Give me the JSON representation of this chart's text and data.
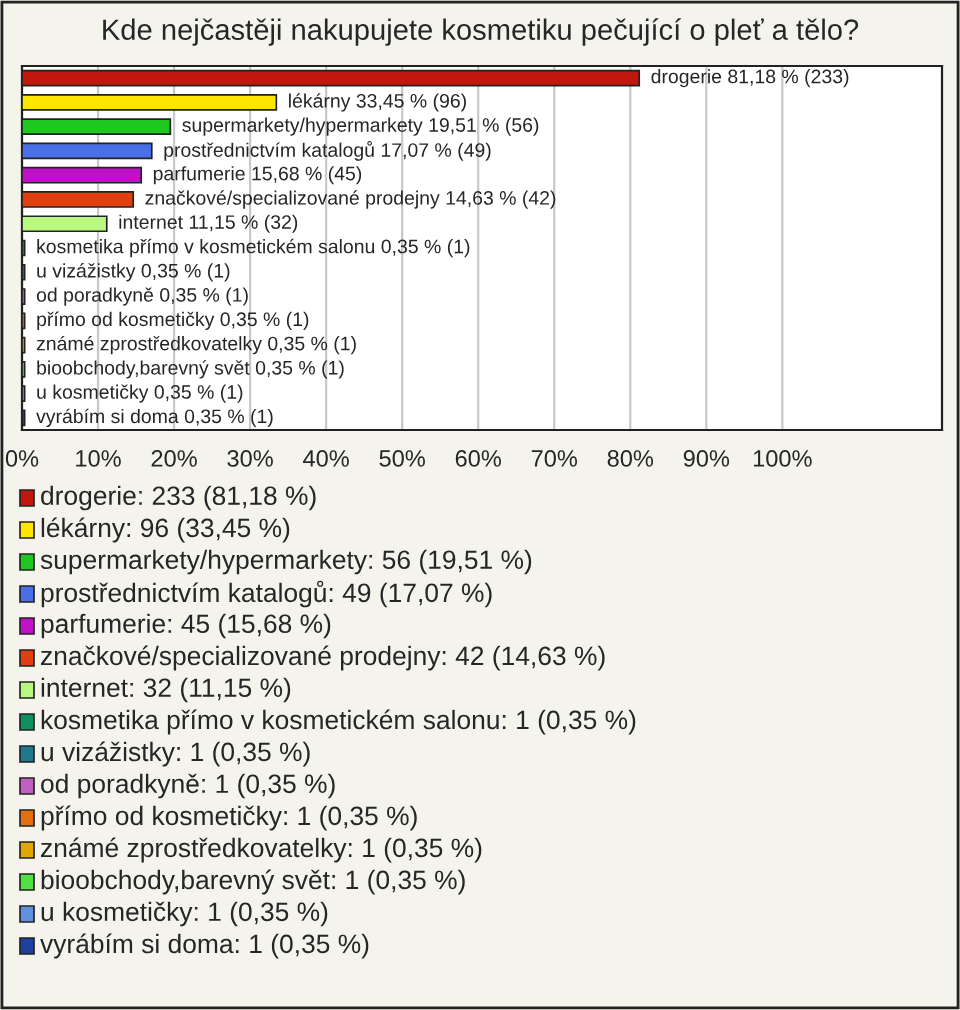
{
  "chart_data": {
    "type": "bar",
    "orientation": "horizontal",
    "title": "Kde nejčastěji nakupujete kosmetiku pečující o pleť a tělo?",
    "categories": [
      "drogerie",
      "lékárny",
      "supermarkety/hypermarkety",
      "prostřednictvím katalogů",
      "parfumerie",
      "značkové/specializované prodejny",
      "internet",
      "kosmetika přímo v kosmetickém salonu",
      "u vizážistky",
      "od poradkyně",
      "přímo od kosmetičky",
      "známé zprostředkovatelky",
      "bioobchody,barevný svět",
      "u kosmetičky",
      "vyrábím si doma"
    ],
    "values": [
      81.18,
      33.45,
      19.51,
      17.07,
      15.68,
      14.63,
      11.15,
      0.35,
      0.35,
      0.35,
      0.35,
      0.35,
      0.35,
      0.35,
      0.35
    ],
    "value_labels": [
      "81,18 % (233)",
      "33,45 % (96)",
      "19,51 % (56)",
      "17,07 % (49)",
      "15,68 % (45)",
      "14,63 % (42)",
      "11,15 % (32)",
      "0,35 % (1)",
      "0,35 % (1)",
      "0,35 % (1)",
      "0,35 % (1)",
      "0,35 % (1)",
      "0,35 % (1)",
      "0,35 % (1)",
      "0,35 % (1)"
    ],
    "colors": [
      "#c0180c",
      "#ffe600",
      "#1ec81e",
      "#4a6fe8",
      "#c010c8",
      "#e04010",
      "#b8f880",
      "#109060",
      "#207890",
      "#c060c0",
      "#e07010",
      "#e0a800",
      "#50e040",
      "#6090e0",
      "#2040a0"
    ],
    "xlim": [
      0,
      121
    ],
    "xticks": [
      {
        "value": 0,
        "label": "0%"
      },
      {
        "value": 10,
        "label": "10%"
      },
      {
        "value": 20,
        "label": "20%"
      },
      {
        "value": 30,
        "label": "30%"
      },
      {
        "value": 40,
        "label": "40%"
      },
      {
        "value": 50,
        "label": "50%"
      },
      {
        "value": 60,
        "label": "60%"
      },
      {
        "value": 70,
        "label": "70%"
      },
      {
        "value": 80,
        "label": "80%"
      },
      {
        "value": 90,
        "label": "90%"
      },
      {
        "value": 100,
        "label": "100%"
      }
    ],
    "grid": "x",
    "annotations": [
      "drogerie: 233 (81,18 %)",
      "lékárny: 96 (33,45 %)",
      "supermarkety/hypermarkety: 56 (19,51 %)",
      "prostřednictvím katalogů: 49 (17,07 %)",
      "parfumerie: 45 (15,68 %)",
      "značkové/specializované prodejny: 42 (14,63 %)",
      "internet: 32 (11,15 %)",
      "kosmetika přímo v kosmetickém salonu: 1 (0,35 %)",
      "u vizážistky: 1 (0,35 %)",
      "od poradkyně: 1 (0,35 %)",
      "přímo od kosmetičky: 1 (0,35 %)",
      "známé zprostředkovatelky: 1 (0,35 %)",
      "bioobchody,barevný svět: 1 (0,35 %)",
      "u kosmetičky: 1 (0,35 %)",
      "vyrábím si doma: 1 (0,35 %)"
    ]
  }
}
